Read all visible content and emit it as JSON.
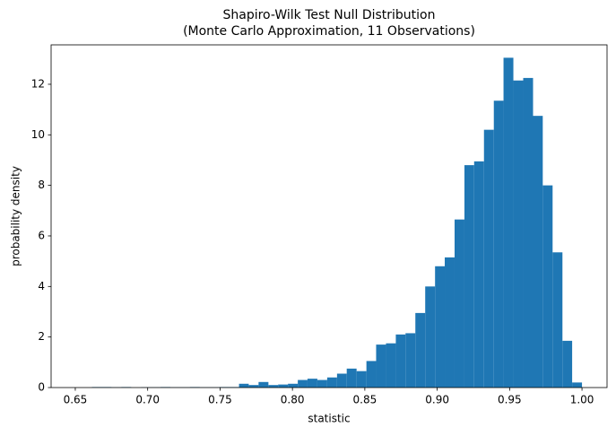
{
  "chart_data": {
    "type": "histogram",
    "title": "Shapiro-Wilk Test Null Distribution",
    "subtitle": "(Monte Carlo Approximation, 11 Observations)",
    "x_label": "statistic",
    "y_label": "probability density",
    "color": "#1f77b4",
    "bins": [
      0.6615,
      0.6683,
      0.675,
      0.6818,
      0.6886,
      0.6954,
      0.7021,
      0.7089,
      0.7157,
      0.7224,
      0.7292,
      0.736,
      0.7427,
      0.7495,
      0.7563,
      0.7631,
      0.7698,
      0.7766,
      0.7834,
      0.7901,
      0.7969,
      0.8037,
      0.8104,
      0.8172,
      0.824,
      0.8308,
      0.8375,
      0.8443,
      0.8511,
      0.8578,
      0.8646,
      0.8714,
      0.8781,
      0.8849,
      0.8917,
      0.8985,
      0.9052,
      0.912,
      0.9188,
      0.9255,
      0.9323,
      0.9391,
      0.9458,
      0.9526,
      0.9594,
      0.9662,
      0.9729,
      0.9797,
      0.9865,
      0.9932,
      1.0
    ],
    "values": [
      0.02,
      0.02,
      0.01,
      0.02,
      0,
      0.01,
      0.01,
      0.02,
      0.01,
      0.01,
      0.02,
      0.01,
      0.01,
      0.02,
      0.02,
      0.15,
      0.1,
      0.22,
      0.1,
      0.12,
      0.15,
      0.3,
      0.35,
      0.3,
      0.4,
      0.55,
      0.75,
      0.65,
      1.05,
      1.7,
      1.75,
      2.1,
      2.15,
      2.95,
      4.0,
      4.8,
      5.15,
      6.65,
      8.8,
      8.95,
      10.2,
      11.35,
      13.05,
      12.15,
      12.25,
      10.75,
      8.0,
      5.35,
      1.85,
      0.2
    ],
    "xlim": [
      0.6333,
      1.0173
    ],
    "xticks": [
      0.65,
      {
        "value": 0.7,
        "label": "0.70"
      },
      0.75,
      {
        "value": 0.8,
        "label": "0.80"
      },
      0.85,
      {
        "value": 0.9,
        "label": "0.90"
      },
      0.95,
      {
        "value": 1.0,
        "label": "1.00"
      }
    ],
    "ylim": [
      0,
      13.56
    ],
    "yticks": [
      0,
      2,
      4,
      6,
      8,
      10,
      12
    ],
    "grid": false
  }
}
